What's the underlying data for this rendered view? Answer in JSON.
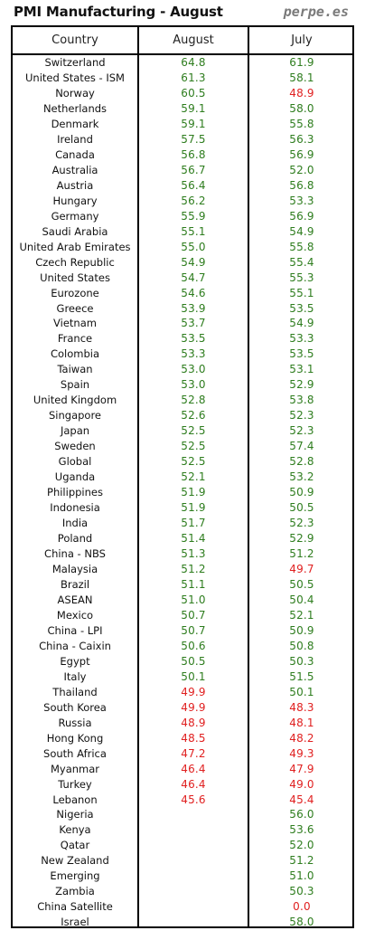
{
  "header": {
    "title": "PMI Manufacturing - August",
    "brand": "perpe.es"
  },
  "colors": {
    "above": "#2e7d1e",
    "below": "#e02020",
    "text": "#111111",
    "brand": "#7a7a7a"
  },
  "columns": [
    "Country",
    "August",
    "July"
  ],
  "rows": [
    {
      "country": "Switzerland",
      "august": "64.8",
      "july": "61.9"
    },
    {
      "country": "United States - ISM",
      "august": "61.3",
      "july": "58.1"
    },
    {
      "country": "Norway",
      "august": "60.5",
      "july": "48.9"
    },
    {
      "country": "Netherlands",
      "august": "59.1",
      "july": "58.0"
    },
    {
      "country": "Denmark",
      "august": "59.1",
      "july": "55.8"
    },
    {
      "country": "Ireland",
      "august": "57.5",
      "july": "56.3"
    },
    {
      "country": "Canada",
      "august": "56.8",
      "july": "56.9"
    },
    {
      "country": "Australia",
      "august": "56.7",
      "july": "52.0"
    },
    {
      "country": "Austria",
      "august": "56.4",
      "july": "56.8"
    },
    {
      "country": "Hungary",
      "august": "56.2",
      "july": "53.3"
    },
    {
      "country": "Germany",
      "august": "55.9",
      "july": "56.9"
    },
    {
      "country": "Saudi Arabia",
      "august": "55.1",
      "july": "54.9"
    },
    {
      "country": "United Arab Emirates",
      "august": "55.0",
      "july": "55.8"
    },
    {
      "country": "Czech Republic",
      "august": "54.9",
      "july": "55.4"
    },
    {
      "country": "United States",
      "august": "54.7",
      "july": "55.3"
    },
    {
      "country": "Eurozone",
      "august": "54.6",
      "july": "55.1"
    },
    {
      "country": "Greece",
      "august": "53.9",
      "july": "53.5"
    },
    {
      "country": "Vietnam",
      "august": "53.7",
      "july": "54.9"
    },
    {
      "country": "France",
      "august": "53.5",
      "july": "53.3"
    },
    {
      "country": "Colombia",
      "august": "53.3",
      "july": "53.5"
    },
    {
      "country": "Taiwan",
      "august": "53.0",
      "july": "53.1"
    },
    {
      "country": "Spain",
      "august": "53.0",
      "july": "52.9"
    },
    {
      "country": "United Kingdom",
      "august": "52.8",
      "july": "53.8"
    },
    {
      "country": "Singapore",
      "august": "52.6",
      "july": "52.3"
    },
    {
      "country": "Japan",
      "august": "52.5",
      "july": "52.3"
    },
    {
      "country": "Sweden",
      "august": "52.5",
      "july": "57.4"
    },
    {
      "country": "Global",
      "august": "52.5",
      "july": "52.8"
    },
    {
      "country": "Uganda",
      "august": "52.1",
      "july": "53.2"
    },
    {
      "country": "Philippines",
      "august": "51.9",
      "july": "50.9"
    },
    {
      "country": "Indonesia",
      "august": "51.9",
      "july": "50.5"
    },
    {
      "country": "India",
      "august": "51.7",
      "july": "52.3"
    },
    {
      "country": "Poland",
      "august": "51.4",
      "july": "52.9"
    },
    {
      "country": "China - NBS",
      "august": "51.3",
      "july": "51.2"
    },
    {
      "country": "Malaysia",
      "august": "51.2",
      "july": "49.7"
    },
    {
      "country": "Brazil",
      "august": "51.1",
      "july": "50.5"
    },
    {
      "country": "ASEAN",
      "august": "51.0",
      "july": "50.4"
    },
    {
      "country": "Mexico",
      "august": "50.7",
      "july": "52.1"
    },
    {
      "country": "China - LPI",
      "august": "50.7",
      "july": "50.9"
    },
    {
      "country": "China - Caixin",
      "august": "50.6",
      "july": "50.8"
    },
    {
      "country": "Egypt",
      "august": "50.5",
      "july": "50.3"
    },
    {
      "country": "Italy",
      "august": "50.1",
      "july": "51.5"
    },
    {
      "country": "Thailand",
      "august": "49.9",
      "july": "50.1"
    },
    {
      "country": "South Korea",
      "august": "49.9",
      "july": "48.3"
    },
    {
      "country": "Russia",
      "august": "48.9",
      "july": "48.1"
    },
    {
      "country": "Hong Kong",
      "august": "48.5",
      "july": "48.2"
    },
    {
      "country": "South Africa",
      "august": "47.2",
      "july": "49.3"
    },
    {
      "country": "Myanmar",
      "august": "46.4",
      "july": "47.9"
    },
    {
      "country": "Turkey",
      "august": "46.4",
      "july": "49.0"
    },
    {
      "country": "Lebanon",
      "august": "45.6",
      "july": "45.4"
    },
    {
      "country": "Nigeria",
      "august": "",
      "july": "56.0"
    },
    {
      "country": "Kenya",
      "august": "",
      "july": "53.6"
    },
    {
      "country": "Qatar",
      "august": "",
      "july": "52.0"
    },
    {
      "country": "New Zealand",
      "august": "",
      "july": "51.2"
    },
    {
      "country": "Emerging",
      "august": "",
      "july": "51.0"
    },
    {
      "country": "Zambia",
      "august": "",
      "july": "50.3"
    },
    {
      "country": "China Satellite",
      "august": "",
      "july": "0.0"
    },
    {
      "country": "Israel",
      "august": "",
      "july": "58.0"
    }
  ]
}
